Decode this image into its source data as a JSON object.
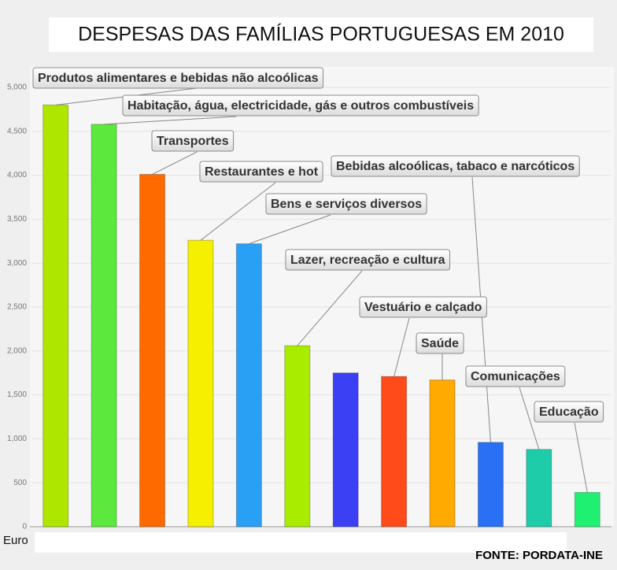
{
  "chart_data": {
    "type": "bar",
    "title": "DESPESAS DAS FAMÍLIAS PORTUGUESAS EM 2010",
    "y_axis_label": "Euro",
    "source": "FONTE: PORDATA-INE",
    "categories": [
      "Produtos alimentares e bebidas não alcoólicas",
      "Habitação, água, electricidade, gás e outros combustíveis",
      "Transportes",
      "Restaurantes e hot",
      "Bens e serviços diversos",
      "Lazer, recreação e cultura",
      null,
      "Vestuário e calçado",
      "Saúde",
      "Bebidas alcoólicas, tabaco e narcóticos",
      "Comunicações",
      "Educação"
    ],
    "values": [
      4800,
      4580,
      4010,
      3260,
      3220,
      2060,
      1750,
      1710,
      1670,
      960,
      880,
      390
    ],
    "colors": [
      "#aee600",
      "#5ce83c",
      "#ff6a00",
      "#f5ef00",
      "#2aa0f5",
      "#aaec00",
      "#3c40f5",
      "#ff4a1a",
      "#ffaa00",
      "#2a70f5",
      "#1fccaa",
      "#20f072"
    ],
    "ylim": [
      0,
      5000
    ],
    "yticks": [
      0,
      {
        "value": 500,
        "label": "500"
      },
      {
        "value": 1000,
        "label": "1,000"
      },
      {
        "value": 1500,
        "label": "1,500"
      },
      {
        "value": 2000,
        "label": "2,000"
      },
      {
        "value": 2500,
        "label": "2,500"
      },
      {
        "value": 3000,
        "label": "3,000"
      },
      {
        "value": 3500,
        "label": "3,500"
      },
      {
        "value": 4000,
        "label": "4,000"
      },
      {
        "value": 4500,
        "label": "4,500"
      },
      {
        "value": 5000,
        "label": "5,000"
      }
    ],
    "grid": true
  }
}
